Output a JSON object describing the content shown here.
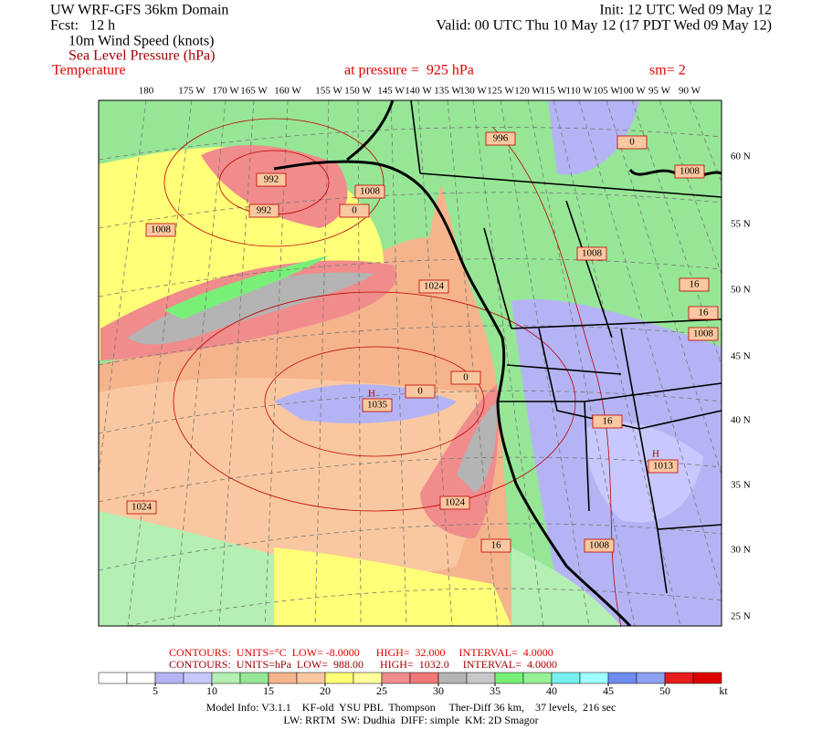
{
  "header": {
    "title": "UW WRF-GFS 36km Domain",
    "fcst": "Fcst:   12 h",
    "field1": "10m Wind Speed (knots)",
    "field2": "Sea Level Pressure (hPa)",
    "field3": "Temperature",
    "init": "Init: 12 UTC Wed 09 May 12",
    "valid": "Valid: 00 UTC Thu 10 May 12 (17 PDT Wed 09 May 12)",
    "pressure": "at pressure =  925 hPa",
    "smooth": "sm= 2"
  },
  "lon_labels": [
    "180",
    "175 W",
    "170 W",
    "165 W",
    "160 W",
    "155 W",
    "150 W",
    "145 W",
    "140 W",
    "135 W",
    "130 W",
    "125 W",
    "120 W",
    "115 W",
    "110 W",
    "105 W",
    "100 W",
    "95 W",
    "90 W"
  ],
  "lat_labels": [
    "60 N",
    "55 N",
    "50 N",
    "45 N",
    "40 N",
    "35 N",
    "30 N",
    "25 N"
  ],
  "map_labels": [
    "996",
    "0",
    "1008",
    "1008",
    "0",
    "992",
    "1008",
    "1008",
    "1024",
    "16",
    "16",
    "1008",
    "0",
    "0",
    "H",
    "1035",
    "16",
    "H",
    "1013",
    "1024",
    "16",
    "1024",
    "1008",
    "992"
  ],
  "contours": [
    "CONTOURS:  UNITS=°C  LOW= -8.0000      HIGH=  32.000     INTERVAL=  4.0000",
    "CONTOURS:  UNITS=hPa  LOW=  988.00      HIGH=  1032.0     INTERVAL=  4.0000"
  ],
  "colorbar": {
    "labels": [
      5,
      10,
      15,
      20,
      25,
      30,
      35,
      40,
      45,
      50
    ],
    "unit": "kt",
    "colors": [
      "#ffffff",
      "#ffffff",
      "#b4b4f5",
      "#c8c8ff",
      "#b4f0b4",
      "#96e696",
      "#f5b48c",
      "#fac8a0",
      "#ffff78",
      "#ffff9a",
      "#f08c8c",
      "#f07878",
      "#b4b4b4",
      "#c8c8c8",
      "#78f078",
      "#96f096",
      "#78f0f0",
      "#a0ffff",
      "#6e8cf0",
      "#8ca0f0",
      "#e61e1e",
      "#dc0000"
    ]
  },
  "model_info": [
    "Model Info: V3.1.1    KF-old  YSU PBL  Thompson     Ther-Diff 36 km,    37 levels,  216 sec",
    "LW: RRTM  SW: Dudhia  DIFF: simple  KM: 2D Smagor"
  ]
}
